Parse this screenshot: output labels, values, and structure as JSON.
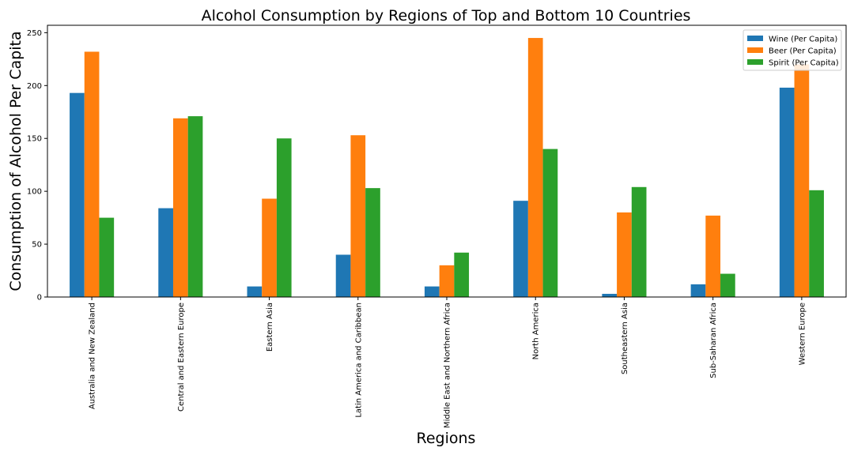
{
  "chart_data": {
    "type": "bar",
    "title": "Alcohol Consumption by Regions of Top and Bottom 10 Countries",
    "xlabel": "Regions",
    "ylabel": "Consumption of Alcohol Per Capita",
    "ylim": [
      0,
      257
    ],
    "yticks": [
      0,
      50,
      100,
      150,
      200,
      250
    ],
    "grid": false,
    "legend_position": "top-right",
    "categories": [
      "Australia and New Zealand",
      "Central and Eastern Europe",
      "Eastern Asia",
      "Latin America and Caribbean",
      "Middle East and Northern Africa",
      "North America",
      "Southeastern Asia",
      "Sub-Saharan Africa",
      "Western Europe"
    ],
    "series": [
      {
        "name": "Wine (Per Capita)",
        "color": "#1f77b4",
        "values": [
          193,
          84,
          10,
          40,
          10,
          91,
          3,
          12,
          198
        ]
      },
      {
        "name": "Beer (Per Capita)",
        "color": "#ff7f0e",
        "values": [
          232,
          169,
          93,
          153,
          30,
          245,
          80,
          77,
          220
        ]
      },
      {
        "name": "Spirit (Per Capita)",
        "color": "#2ca02c",
        "values": [
          75,
          171,
          150,
          103,
          42,
          140,
          104,
          22,
          101
        ]
      }
    ]
  }
}
